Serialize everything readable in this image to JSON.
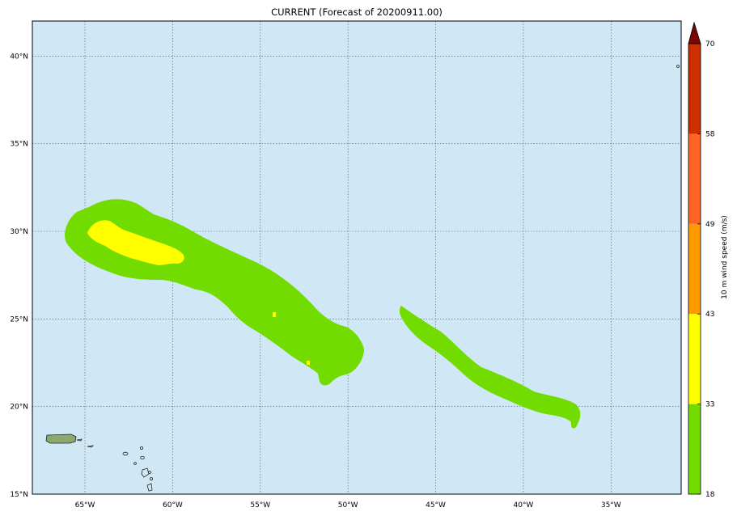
{
  "title": "CURRENT (Forecast of 20200911.00)",
  "map": {
    "lon_range": [
      -68,
      -31
    ],
    "lat_range": [
      15,
      42
    ],
    "ocean_color": "#d0e8f6",
    "grid": true,
    "lon_ticks": [
      {
        "value": -65,
        "label": "65°W"
      },
      {
        "value": -60,
        "label": "60°W"
      },
      {
        "value": -55,
        "label": "55°W"
      },
      {
        "value": -50,
        "label": "50°W"
      },
      {
        "value": -45,
        "label": "45°W"
      },
      {
        "value": -40,
        "label": "40°W"
      },
      {
        "value": -35,
        "label": "35°W"
      }
    ],
    "lat_ticks": [
      {
        "value": 15,
        "label": "15°N"
      },
      {
        "value": 20,
        "label": "20°N"
      },
      {
        "value": 25,
        "label": "25°N"
      },
      {
        "value": 30,
        "label": "30°N"
      },
      {
        "value": 35,
        "label": "35°N"
      },
      {
        "value": 40,
        "label": "40°N"
      }
    ],
    "layers": [
      {
        "name": "wind-swath-paulette-green",
        "color": "#72dc00"
      },
      {
        "name": "wind-swath-paulette-yellow",
        "color": "#ffff00"
      },
      {
        "name": "wind-swath-rene-green",
        "color": "#72dc00"
      },
      {
        "name": "puerto-rico-land",
        "color": "#8aa870"
      }
    ]
  },
  "colorbar": {
    "label": "10 m wind speed (m/s)",
    "extend": "max",
    "ticks": [
      "18",
      "33",
      "43",
      "49",
      "58",
      "70"
    ],
    "bins": [
      {
        "from": 18,
        "to": 33,
        "color": "#72dc00"
      },
      {
        "from": 33,
        "to": 43,
        "color": "#ffff00"
      },
      {
        "from": 43,
        "to": 49,
        "color": "#ff9a00"
      },
      {
        "from": 49,
        "to": 58,
        "color": "#ff6426"
      },
      {
        "from": 58,
        "to": 70,
        "color": "#cc3000"
      }
    ],
    "extend_color": "#7a0808"
  }
}
